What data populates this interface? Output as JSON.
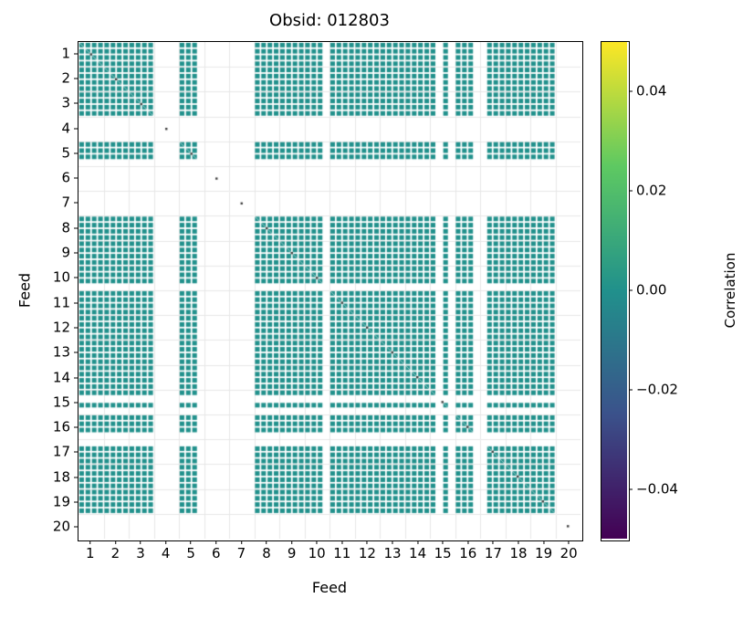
{
  "chart_data": {
    "type": "heatmap",
    "title": "Obsid: 012803",
    "xlabel": "Feed",
    "ylabel": "Feed",
    "x_ticks": [
      "1",
      "2",
      "3",
      "4",
      "5",
      "6",
      "7",
      "8",
      "9",
      "10",
      "11",
      "12",
      "13",
      "14",
      "15",
      "16",
      "17",
      "18",
      "19",
      "20"
    ],
    "y_ticks": [
      "1",
      "2",
      "3",
      "4",
      "5",
      "6",
      "7",
      "8",
      "9",
      "10",
      "11",
      "12",
      "13",
      "14",
      "15",
      "16",
      "17",
      "18",
      "19",
      "20"
    ],
    "n_feeds": 20,
    "subbands_per_feed": 4,
    "matrix_rule": "cell(i,j) is colored iff sub-band i and sub-band j are both active; all visible correlations are approximately 0.00 (uniform teal)",
    "cell_value": 0.0,
    "feed_active_subbands": [
      [
        1,
        1,
        1,
        1
      ],
      [
        1,
        1,
        1,
        1
      ],
      [
        1,
        1,
        1,
        1
      ],
      [
        0,
        0,
        0,
        0
      ],
      [
        1,
        1,
        1,
        0
      ],
      [
        0,
        0,
        0,
        0
      ],
      [
        0,
        0,
        0,
        0
      ],
      [
        1,
        1,
        1,
        1
      ],
      [
        1,
        1,
        1,
        1
      ],
      [
        1,
        1,
        1,
        0
      ],
      [
        1,
        1,
        1,
        1
      ],
      [
        1,
        1,
        1,
        1
      ],
      [
        1,
        1,
        1,
        1
      ],
      [
        1,
        1,
        1,
        1
      ],
      [
        1,
        0,
        1,
        0
      ],
      [
        1,
        1,
        1,
        0
      ],
      [
        0,
        1,
        1,
        1
      ],
      [
        1,
        1,
        1,
        1
      ],
      [
        1,
        1,
        1,
        1
      ],
      [
        0,
        0,
        0,
        0
      ]
    ],
    "cell_color": "#21918c",
    "grid_color": "#e7e7e7",
    "diagonal_dot_color": "#3c3c3c",
    "plot_bg": "#ffffff",
    "grid": true,
    "colorbar": {
      "label": "Correlation",
      "vmin": -0.05,
      "vmax": 0.05,
      "ticks": [
        "0.04",
        "0.02",
        "0.00",
        "−0.02",
        "−0.04"
      ],
      "tick_values": [
        0.04,
        0.02,
        0.0,
        -0.02,
        -0.04
      ],
      "gradient_top_to_bottom": [
        "#fde725",
        "#5ec962",
        "#21918c",
        "#3b528b",
        "#440154"
      ],
      "position": "right"
    }
  }
}
